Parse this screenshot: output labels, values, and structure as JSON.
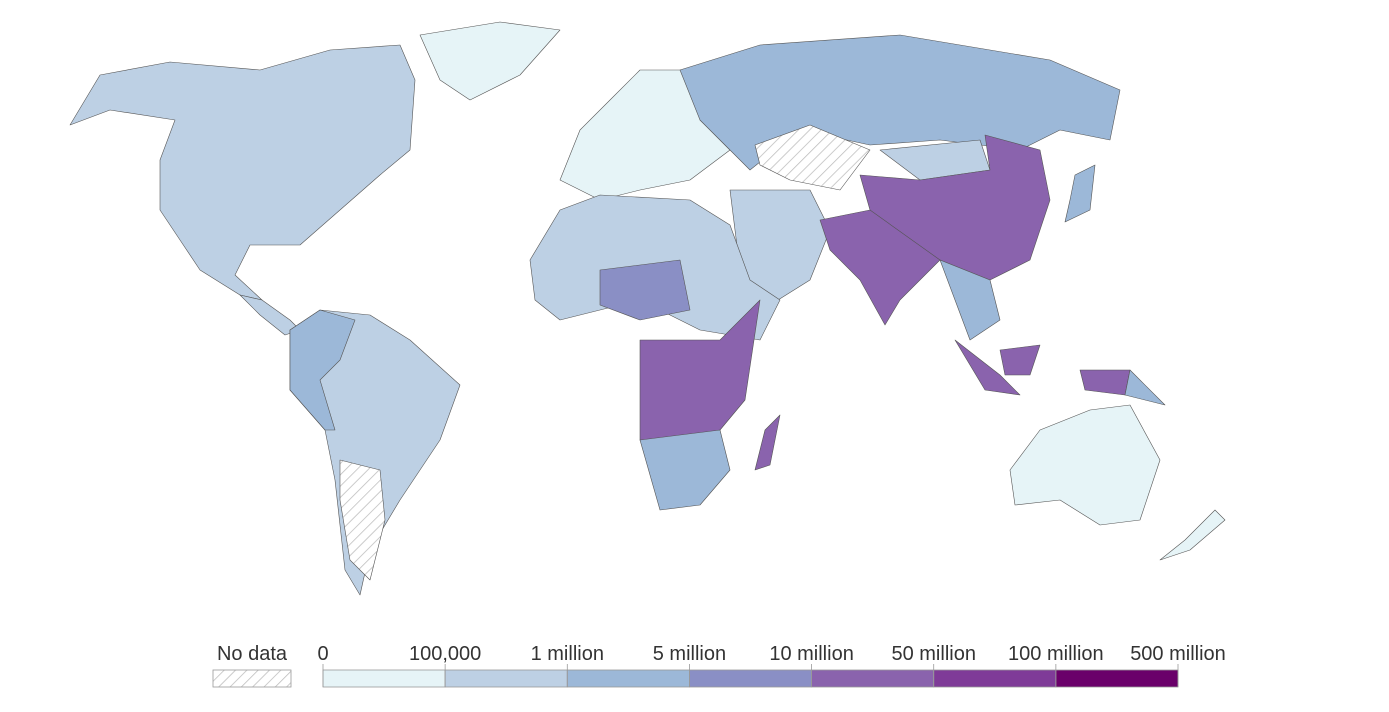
{
  "legend": {
    "no_data_label": "No data",
    "ticks": [
      0,
      {
        "value": 100000,
        "label": "100,000"
      },
      {
        "value": 1000000,
        "label": "1 million"
      },
      {
        "value": 5000000,
        "label": "5 million"
      },
      {
        "value": 10000000,
        "label": "10 million"
      },
      {
        "value": 50000000,
        "label": "50 million"
      },
      {
        "value": 100000000,
        "label": "100 million"
      },
      {
        "value": 500000000,
        "label": "500 million"
      }
    ],
    "colors": [
      "#e6f4f7",
      "#bdd0e4",
      "#9cb8d8",
      "#8a8fc5",
      "#8a63ad",
      "#7f3b98",
      "#6a006a"
    ]
  }
}
